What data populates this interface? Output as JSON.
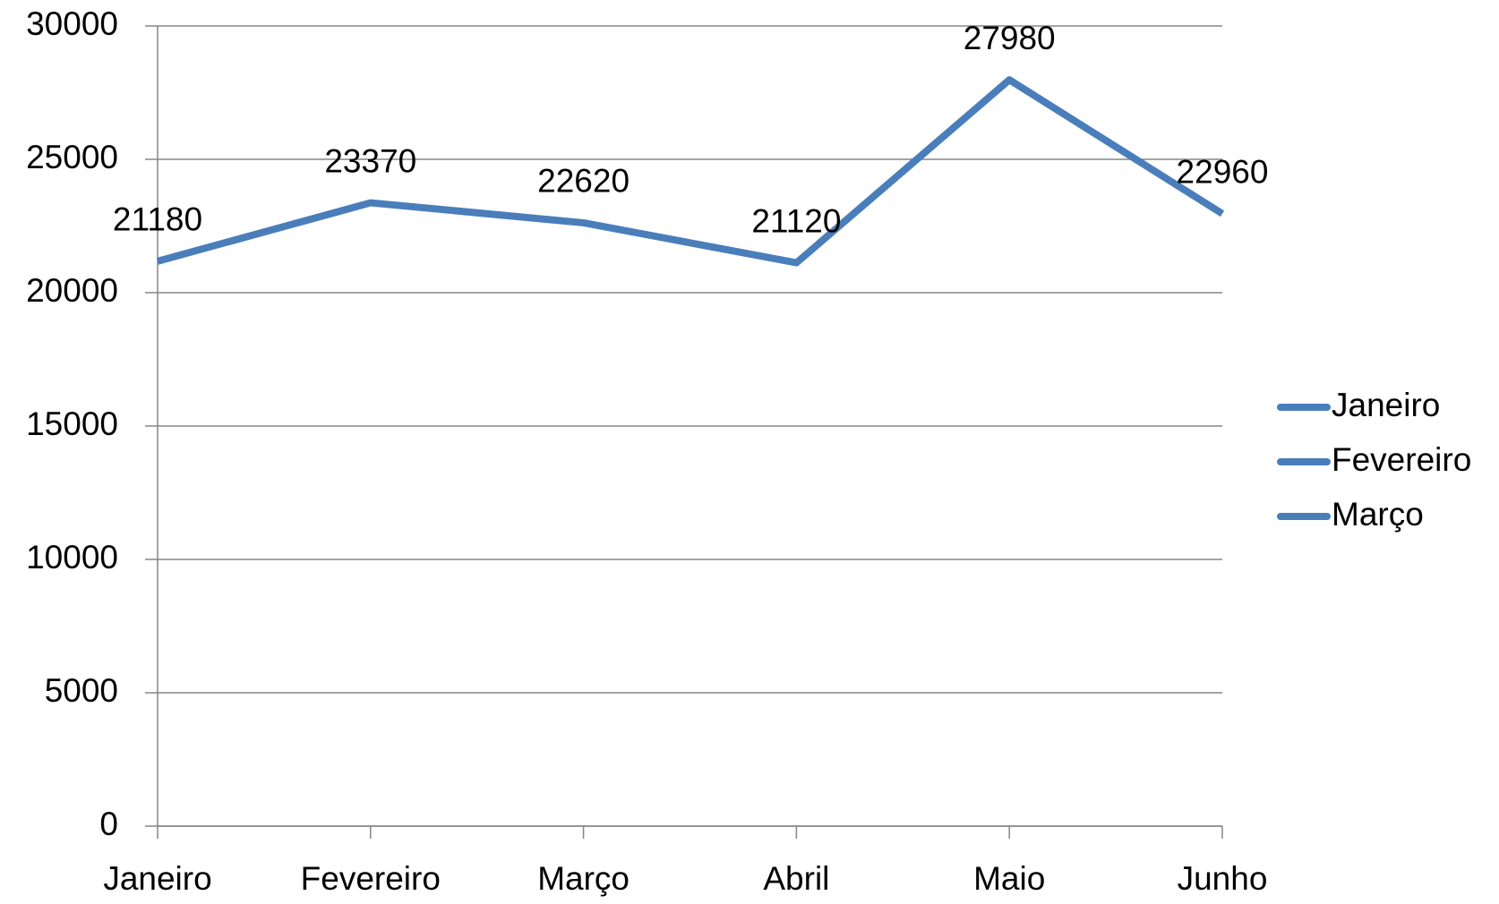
{
  "chart_data": {
    "type": "line",
    "categories": [
      "Janeiro",
      "Fevereiro",
      "Março",
      "Abril",
      "Maio",
      "Junho"
    ],
    "series": [
      {
        "name": "Janeiro",
        "color": "#4a7ebb",
        "values": [
          21180,
          23370,
          22620,
          21120,
          27980,
          22960
        ]
      },
      {
        "name": "Fevereiro",
        "color": "#4a7ebb",
        "values": [
          null,
          null,
          null,
          null,
          null,
          null
        ]
      },
      {
        "name": "Março",
        "color": "#4a7ebb",
        "values": [
          null,
          null,
          null,
          null,
          null,
          null
        ]
      }
    ],
    "ylim": [
      0,
      30000
    ],
    "yticks": [
      0,
      5000,
      10000,
      15000,
      20000,
      25000,
      30000
    ],
    "grid": true,
    "legend": "right",
    "data_labels": true
  }
}
